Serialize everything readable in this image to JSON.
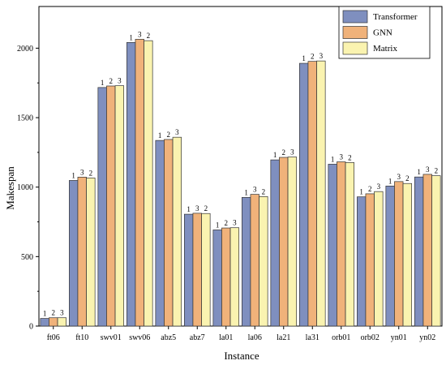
{
  "chart_data": {
    "type": "bar",
    "xlabel": "Instance",
    "ylabel": "Makespan",
    "ylim": [
      0,
      2300
    ],
    "yticks": [
      0,
      500,
      1000,
      1500,
      2000
    ],
    "categories": [
      "ft06",
      "ft10",
      "swv01",
      "swv06",
      "abz5",
      "abz7",
      "la01",
      "la06",
      "la21",
      "la31",
      "orb01",
      "orb02",
      "yn01",
      "yn02"
    ],
    "series": [
      {
        "name": "Transformer",
        "color": "#7f8fbf",
        "values": [
          55,
          1048,
          1717,
          2041,
          1336,
          805,
          692,
          926,
          1196,
          1891,
          1165,
          930,
          1008,
          1073
        ],
        "ranks": [
          "1",
          "1",
          "1",
          "1",
          "1",
          "1",
          "1",
          "1",
          "1",
          "1",
          "1",
          "1",
          "1",
          "1"
        ]
      },
      {
        "name": "GNN",
        "color": "#f0b27a",
        "values": [
          60,
          1072,
          1728,
          2064,
          1343,
          812,
          706,
          948,
          1214,
          1905,
          1182,
          952,
          1040,
          1092
        ],
        "ranks": [
          "2",
          "3",
          "2",
          "3",
          "2",
          "3",
          "2",
          "3",
          "2",
          "2",
          "3",
          "2",
          "3",
          "3"
        ]
      },
      {
        "name": "Matrix",
        "color": "#faf3b0",
        "values": [
          60,
          1066,
          1730,
          2054,
          1359,
          810,
          708,
          932,
          1217,
          1908,
          1177,
          968,
          1026,
          1082
        ],
        "ranks": [
          "3",
          "2",
          "3",
          "2",
          "3",
          "2",
          "3",
          "2",
          "3",
          "3",
          "2",
          "3",
          "2",
          "2"
        ]
      }
    ],
    "legend_position": "top-right",
    "grid": false
  }
}
